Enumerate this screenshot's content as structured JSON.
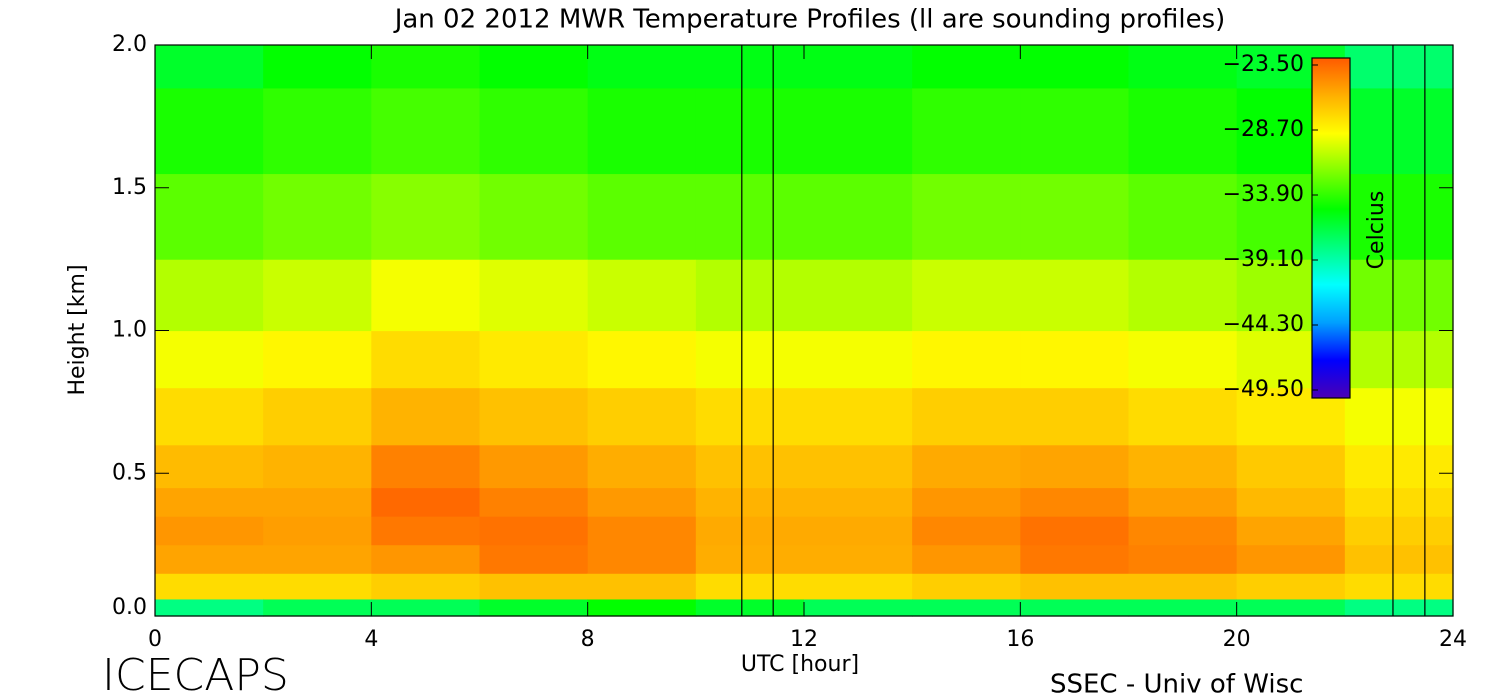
{
  "chart_data": {
    "type": "contour",
    "title": "Jan 02 2012 MWR Temperature Profiles (ll are sounding profiles)",
    "x_label": "UTC [hour]",
    "y_label": "Height [km]",
    "colorbar_label": "Celcius",
    "footer_left": "ICECAPS",
    "footer_right": "SSEC - Univ of Wisc",
    "xlim": [
      0,
      24
    ],
    "xticks": [
      0,
      4,
      8,
      12,
      16,
      20,
      24
    ],
    "ylim": [
      0,
      2
    ],
    "yticks": [
      {
        "value": 0,
        "label": "0.0"
      },
      0.5,
      {
        "value": 1,
        "label": "1.0"
      },
      1.5,
      {
        "value": 2,
        "label": "2.0"
      }
    ],
    "clim": [
      -49.5,
      -23.5
    ],
    "cticks": [
      {
        "value": -23.5,
        "label": "−23.50"
      },
      {
        "value": -28.7,
        "label": "−28.70"
      },
      {
        "value": -33.9,
        "label": "−33.90"
      },
      {
        "value": -39.1,
        "label": "−39.10"
      },
      {
        "value": -44.3,
        "label": "−44.30"
      },
      {
        "value": -49.5,
        "label": "−49.50"
      }
    ],
    "colorscale": [
      "#4b00b4",
      "#0000ff",
      "#00a0ff",
      "#00ffff",
      "#00ff80",
      "#00ff00",
      "#80ff00",
      "#ffff00",
      "#ffb000",
      "#ff5a00"
    ],
    "x": [
      1,
      3,
      5,
      7,
      9,
      11,
      13,
      15,
      17,
      19,
      21,
      23
    ],
    "y": [
      0.02,
      0.1,
      0.2,
      0.3,
      0.4,
      0.5,
      0.7,
      0.9,
      1.1,
      1.4,
      1.7,
      2.0
    ],
    "z": [
      [
        -38,
        -28,
        -26,
        -25.5,
        -26,
        -26.8,
        -28,
        -29.5,
        -31,
        -33,
        -34.5,
        -36
      ],
      [
        -37,
        -28,
        -26,
        -25.8,
        -26,
        -26.5,
        -27.5,
        -29,
        -30.5,
        -32.5,
        -34,
        -35
      ],
      [
        -37,
        -27.5,
        -25.5,
        -24.5,
        -24,
        -24.8,
        -26.5,
        -28,
        -29.5,
        -32,
        -33.5,
        -34.5
      ],
      [
        -36,
        -27,
        -24.5,
        -24.3,
        -24.8,
        -25.6,
        -27,
        -28.5,
        -30,
        -32.5,
        -34,
        -35
      ],
      [
        -35,
        -27,
        -25,
        -25,
        -25.6,
        -26.3,
        -27.5,
        -29,
        -30.5,
        -33,
        -34.5,
        -35.5
      ],
      [
        -36,
        -28,
        -26.3,
        -26.2,
        -26.5,
        -27,
        -28,
        -29.5,
        -31,
        -33,
        -34.5,
        -35.5
      ],
      [
        -37,
        -28,
        -26.3,
        -26.2,
        -26.5,
        -27,
        -28,
        -29.5,
        -31,
        -33,
        -34.5,
        -35.5
      ],
      [
        -37,
        -27.5,
        -25.5,
        -25,
        -25.5,
        -26.2,
        -27.5,
        -29,
        -30.5,
        -32.5,
        -34,
        -35
      ],
      [
        -37,
        -27,
        -24.5,
        -24.3,
        -25,
        -26,
        -27.5,
        -29,
        -30.5,
        -32.5,
        -34,
        -35
      ],
      [
        -37,
        -27,
        -24.8,
        -25,
        -25.8,
        -26.5,
        -28,
        -29.5,
        -31,
        -33,
        -34.5,
        -35.5
      ],
      [
        -37,
        -27.5,
        -25.5,
        -26,
        -26.7,
        -27.3,
        -28.5,
        -30,
        -31.5,
        -33.5,
        -35,
        -36
      ],
      [
        -38,
        -28,
        -27,
        -27.5,
        -28,
        -28.5,
        -29.5,
        -31,
        -32.5,
        -34.5,
        -36,
        -37.5
      ]
    ],
    "soundings": [
      10.85,
      11.43,
      22.89,
      23.48
    ]
  }
}
